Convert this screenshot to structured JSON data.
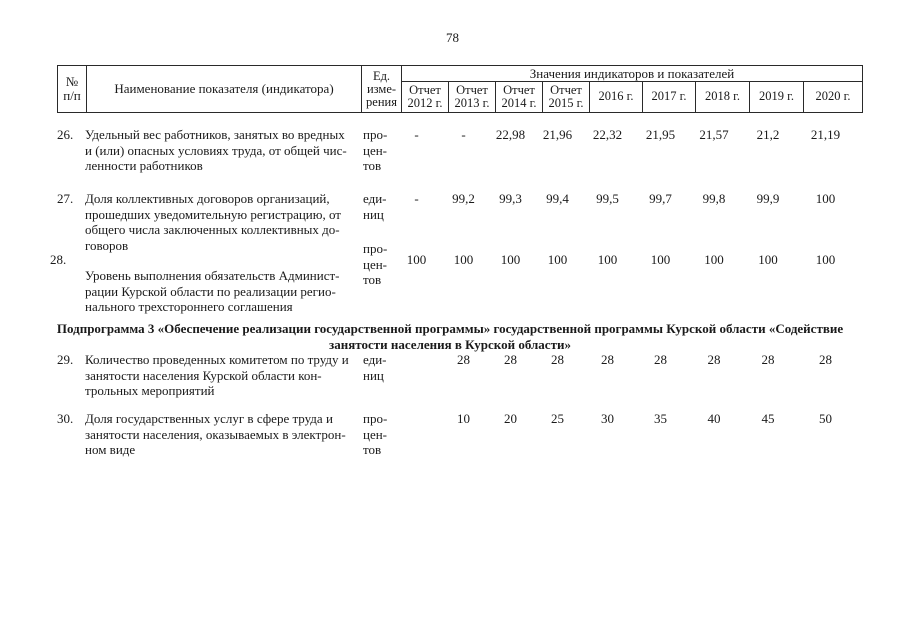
{
  "page": {
    "number": "78"
  },
  "table": {
    "header": {
      "col_num": "№\nп/п",
      "col_name": "Наименование показателя (индикатора)",
      "col_unit": "Ед.\nизме-\nрения",
      "values_group_label": "Значения индикаторов и показателей",
      "year_columns": [
        "Отчет\n2012 г.",
        "Отчет\n2013 г.",
        "Отчет\n2014 г.",
        "Отчет\n2015 г.",
        "2016 г.",
        "2017 г.",
        "2018 г.",
        "2019 г.",
        "2020 г."
      ]
    },
    "rows": [
      {
        "num": "26.",
        "name": "Удельный вес работников, занятых во вредных\nи (или) опасных условиях труда, от общей чис-\nленности работников",
        "unit": "про-\nцен-\nтов",
        "values": [
          "-",
          "-",
          "22,98",
          "21,96",
          "22,32",
          "21,95",
          "21,57",
          "21,2",
          "21,19"
        ]
      },
      {
        "num": "27.",
        "name": "Доля коллективных договоров организаций,\nпрошедших уведомительную регистрацию, от\nобщего числа заключенных коллективных до-\nговоров",
        "unit": "еди-\nниц",
        "values": [
          "-",
          "99,2",
          "99,3",
          "99,4",
          "99,5",
          "99,7",
          "99,8",
          "99,9",
          "100"
        ]
      },
      {
        "num": "28.",
        "name": "Уровень выполнения обязательств Админист-\nрации Курской области по реализации регио-\nнального трехстороннего соглашения",
        "unit": "про-\nцен-\nтов",
        "values": [
          "100",
          "100",
          "100",
          "100",
          "100",
          "100",
          "100",
          "100",
          "100"
        ]
      },
      {
        "num": "29.",
        "name": "Количество проведенных комитетом по труду и\nзанятости населения Курской области кон-\nтрольных мероприятий",
        "unit": "еди-\nниц",
        "values": [
          "",
          "28",
          "28",
          "28",
          "28",
          "28",
          "28",
          "28",
          "28"
        ]
      },
      {
        "num": "30.",
        "name": "Доля государственных услуг в сфере труда и\nзанятости населения, оказываемых в электрон-\nном виде",
        "unit": "про-\nцен-\nтов",
        "values": [
          "",
          "10",
          "20",
          "25",
          "30",
          "35",
          "40",
          "45",
          "50"
        ]
      }
    ],
    "section_heading": "Подпрограмма 3 «Обеспечение реализации государственной программы» государственной программы Курской области «Содействие\nзанятости населения в Курской области»"
  }
}
